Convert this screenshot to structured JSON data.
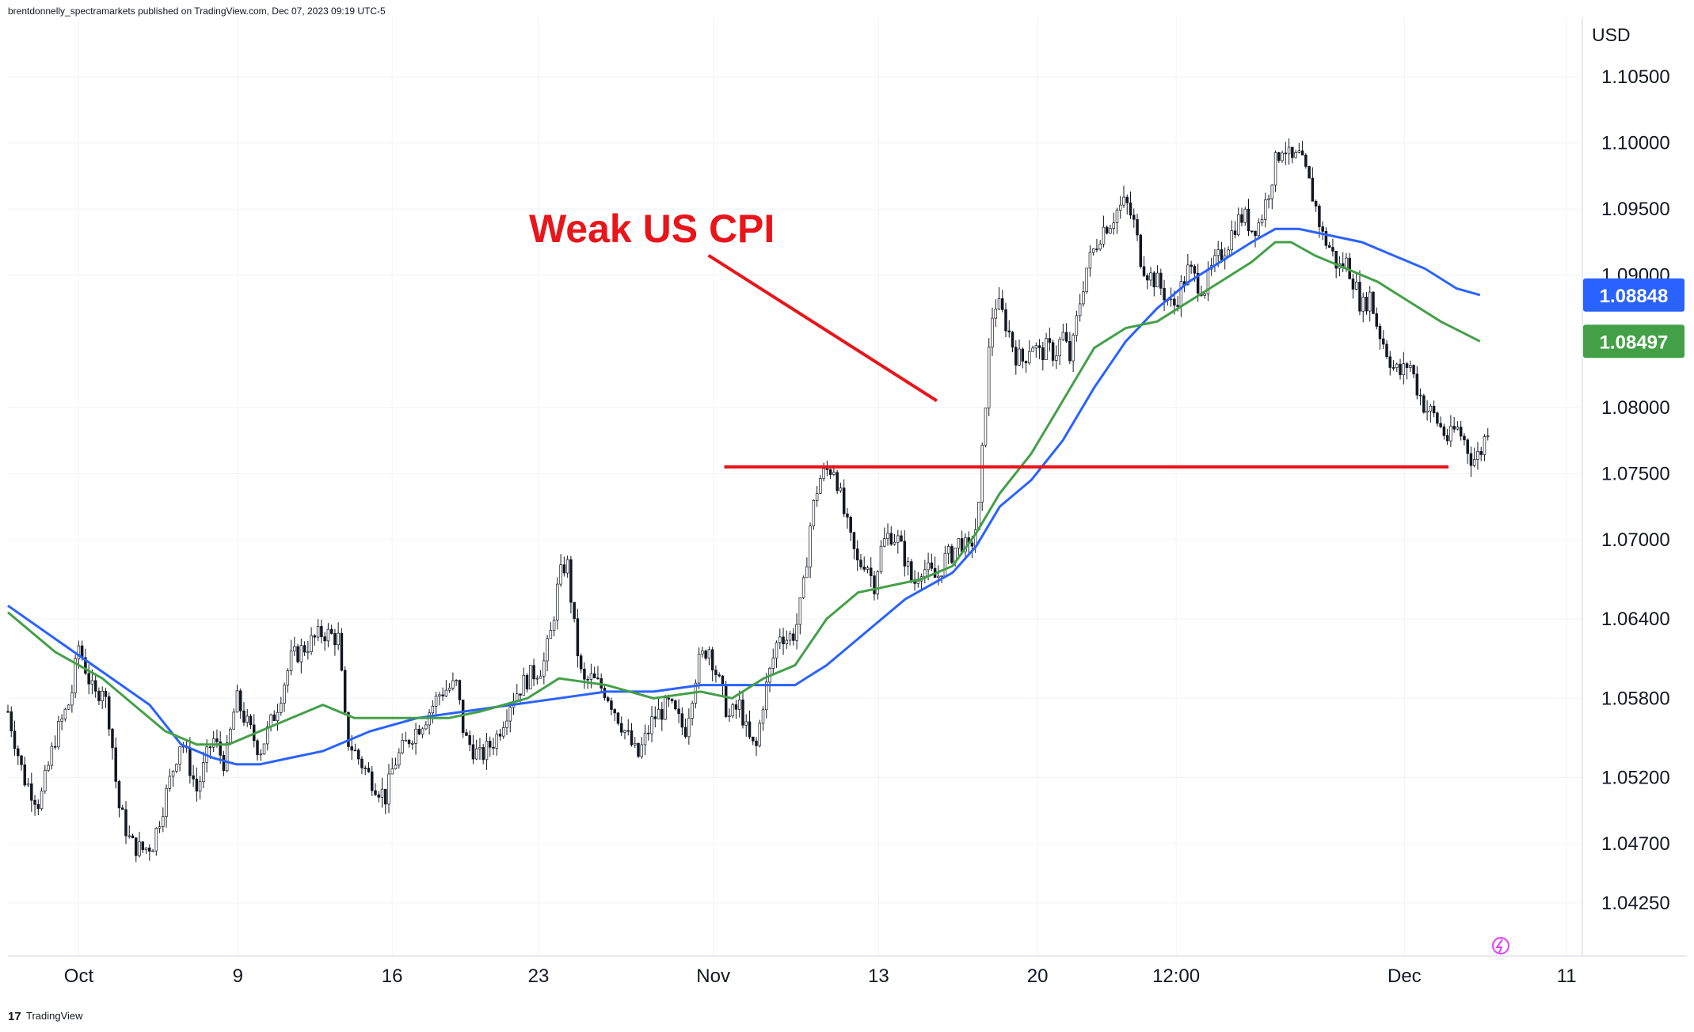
{
  "header": {
    "published_text": "brentdonnelly_spectramarkets published on TradingView.com, Dec 07, 2023 09:19 UTC-5"
  },
  "footer": {
    "logo_text": "TradingView"
  },
  "chart_data": {
    "type": "candlestick",
    "title": "",
    "currency_label": "USD",
    "y_axis": {
      "range": [
        1.0385,
        1.1095
      ],
      "tick_labels": [
        "1.10500",
        "1.10000",
        "1.09500",
        "1.09000",
        "1.08000",
        "1.07500",
        "1.07000",
        "1.06400",
        "1.05800",
        "1.05200",
        "1.04700",
        "1.04250"
      ],
      "tick_values": [
        1.105,
        1.1,
        1.095,
        1.09,
        1.08,
        1.075,
        1.07,
        1.064,
        1.058,
        1.052,
        1.047,
        1.0425
      ]
    },
    "x_axis": {
      "tick_labels": [
        "Oct",
        "9",
        "16",
        "23",
        "Nov",
        "13",
        "20",
        "12:00",
        "Dec",
        "11"
      ],
      "tick_positions": [
        0.045,
        0.146,
        0.244,
        0.337,
        0.448,
        0.553,
        0.654,
        0.742,
        0.887,
        0.99
      ]
    },
    "price_anchors": [
      [
        0.0,
        1.057
      ],
      [
        0.01,
        1.052
      ],
      [
        0.02,
        1.05
      ],
      [
        0.03,
        1.055
      ],
      [
        0.04,
        1.058
      ],
      [
        0.045,
        1.062
      ],
      [
        0.05,
        1.06
      ],
      [
        0.055,
        1.058
      ],
      [
        0.06,
        1.059
      ],
      [
        0.065,
        1.056
      ],
      [
        0.07,
        1.05
      ],
      [
        0.078,
        1.047
      ],
      [
        0.085,
        1.0465
      ],
      [
        0.092,
        1.047
      ],
      [
        0.1,
        1.0505
      ],
      [
        0.11,
        1.055
      ],
      [
        0.12,
        1.051
      ],
      [
        0.13,
        1.055
      ],
      [
        0.138,
        1.053
      ],
      [
        0.145,
        1.058
      ],
      [
        0.152,
        1.056
      ],
      [
        0.16,
        1.054
      ],
      [
        0.17,
        1.057
      ],
      [
        0.18,
        1.061
      ],
      [
        0.19,
        1.062
      ],
      [
        0.2,
        1.063
      ],
      [
        0.21,
        1.0625
      ],
      [
        0.215,
        1.055
      ],
      [
        0.22,
        1.054
      ],
      [
        0.23,
        1.052
      ],
      [
        0.24,
        1.0505
      ],
      [
        0.245,
        1.053
      ],
      [
        0.255,
        1.055
      ],
      [
        0.265,
        1.0565
      ],
      [
        0.275,
        1.0585
      ],
      [
        0.285,
        1.059
      ],
      [
        0.29,
        1.055
      ],
      [
        0.3,
        1.0535
      ],
      [
        0.31,
        1.055
      ],
      [
        0.32,
        1.058
      ],
      [
        0.33,
        1.0595
      ],
      [
        0.34,
        1.0605
      ],
      [
        0.345,
        1.063
      ],
      [
        0.35,
        1.067
      ],
      [
        0.355,
        1.0685
      ],
      [
        0.36,
        1.063
      ],
      [
        0.365,
        1.059
      ],
      [
        0.37,
        1.0595
      ],
      [
        0.38,
        1.0585
      ],
      [
        0.39,
        1.056
      ],
      [
        0.4,
        1.0535
      ],
      [
        0.41,
        1.0565
      ],
      [
        0.42,
        1.0575
      ],
      [
        0.43,
        1.0555
      ],
      [
        0.438,
        1.0605
      ],
      [
        0.445,
        1.062
      ],
      [
        0.452,
        1.059
      ],
      [
        0.458,
        1.0565
      ],
      [
        0.465,
        1.0575
      ],
      [
        0.47,
        1.055
      ],
      [
        0.475,
        1.054
      ],
      [
        0.48,
        1.058
      ],
      [
        0.485,
        1.0605
      ],
      [
        0.49,
        1.063
      ],
      [
        0.495,
        1.0625
      ],
      [
        0.5,
        1.063
      ],
      [
        0.505,
        1.066
      ],
      [
        0.51,
        1.0715
      ],
      [
        0.515,
        1.0745
      ],
      [
        0.52,
        1.0752
      ],
      [
        0.525,
        1.0755
      ],
      [
        0.53,
        1.0725
      ],
      [
        0.535,
        1.07
      ],
      [
        0.54,
        1.068
      ],
      [
        0.545,
        1.0685
      ],
      [
        0.55,
        1.0665
      ],
      [
        0.555,
        1.0695
      ],
      [
        0.56,
        1.0705
      ],
      [
        0.565,
        1.07
      ],
      [
        0.57,
        1.0685
      ],
      [
        0.575,
        1.0665
      ],
      [
        0.58,
        1.068
      ],
      [
        0.585,
        1.0675
      ],
      [
        0.59,
        1.067
      ],
      [
        0.595,
        1.0685
      ],
      [
        0.6,
        1.069
      ],
      [
        0.605,
        1.07
      ],
      [
        0.61,
        1.069
      ],
      [
        0.614,
        1.0705
      ],
      [
        0.617,
        1.0725
      ],
      [
        0.62,
        1.079
      ],
      [
        0.623,
        1.084
      ],
      [
        0.626,
        1.088
      ],
      [
        0.63,
        1.0875
      ],
      [
        0.635,
        1.086
      ],
      [
        0.64,
        1.084
      ],
      [
        0.645,
        1.0835
      ],
      [
        0.65,
        1.085
      ],
      [
        0.655,
        1.084
      ],
      [
        0.66,
        1.0845
      ],
      [
        0.665,
        1.084
      ],
      [
        0.67,
        1.0855
      ],
      [
        0.675,
        1.0835
      ],
      [
        0.68,
        1.0875
      ],
      [
        0.685,
        1.0905
      ],
      [
        0.69,
        1.092
      ],
      [
        0.695,
        1.0935
      ],
      [
        0.7,
        1.094
      ],
      [
        0.705,
        1.095
      ],
      [
        0.71,
        1.0955
      ],
      [
        0.715,
        1.094
      ],
      [
        0.72,
        1.091
      ],
      [
        0.725,
        1.09
      ],
      [
        0.73,
        1.0895
      ],
      [
        0.735,
        1.0885
      ],
      [
        0.74,
        1.0875
      ],
      [
        0.745,
        1.089
      ],
      [
        0.75,
        1.0905
      ],
      [
        0.755,
        1.0895
      ],
      [
        0.76,
        1.089
      ],
      [
        0.765,
        1.0905
      ],
      [
        0.77,
        1.0915
      ],
      [
        0.775,
        1.0925
      ],
      [
        0.78,
        1.094
      ],
      [
        0.785,
        1.0945
      ],
      [
        0.79,
        1.0935
      ],
      [
        0.795,
        1.094
      ],
      [
        0.8,
        1.096
      ],
      [
        0.805,
        1.0985
      ],
      [
        0.81,
        1.1
      ],
      [
        0.815,
        1.0985
      ],
      [
        0.82,
        1.099
      ],
      [
        0.825,
        1.0975
      ],
      [
        0.83,
        1.0955
      ],
      [
        0.835,
        1.093
      ],
      [
        0.84,
        1.092
      ],
      [
        0.845,
        1.0905
      ],
      [
        0.85,
        1.091
      ],
      [
        0.855,
        1.0895
      ],
      [
        0.86,
        1.0875
      ],
      [
        0.865,
        1.0885
      ],
      [
        0.87,
        1.086
      ],
      [
        0.875,
        1.0845
      ],
      [
        0.88,
        1.083
      ],
      [
        0.885,
        1.0825
      ],
      [
        0.89,
        1.0835
      ],
      [
        0.895,
        1.0815
      ],
      [
        0.9,
        1.08
      ],
      [
        0.905,
        1.0795
      ],
      [
        0.91,
        1.0785
      ],
      [
        0.915,
        1.0775
      ],
      [
        0.92,
        1.0785
      ],
      [
        0.925,
        1.0775
      ],
      [
        0.93,
        1.076
      ],
      [
        0.935,
        1.0765
      ],
      [
        0.94,
        1.0785
      ]
    ],
    "moving_averages": [
      {
        "name": "blue-ma",
        "color": "#2962ff",
        "last_value_label": "1.08848",
        "points": [
          [
            0.0,
            1.065
          ],
          [
            0.03,
            1.0625
          ],
          [
            0.06,
            1.06
          ],
          [
            0.09,
            1.0575
          ],
          [
            0.11,
            1.0545
          ],
          [
            0.13,
            1.0535
          ],
          [
            0.145,
            1.053
          ],
          [
            0.16,
            1.053
          ],
          [
            0.18,
            1.0535
          ],
          [
            0.2,
            1.054
          ],
          [
            0.23,
            1.0555
          ],
          [
            0.26,
            1.0565
          ],
          [
            0.29,
            1.057
          ],
          [
            0.32,
            1.0575
          ],
          [
            0.35,
            1.058
          ],
          [
            0.38,
            1.0585
          ],
          [
            0.41,
            1.0585
          ],
          [
            0.44,
            1.059
          ],
          [
            0.47,
            1.059
          ],
          [
            0.5,
            1.059
          ],
          [
            0.52,
            1.0605
          ],
          [
            0.55,
            1.0635
          ],
          [
            0.57,
            1.0655
          ],
          [
            0.6,
            1.0675
          ],
          [
            0.615,
            1.0695
          ],
          [
            0.63,
            1.0725
          ],
          [
            0.65,
            1.0745
          ],
          [
            0.67,
            1.0775
          ],
          [
            0.69,
            1.0815
          ],
          [
            0.71,
            1.085
          ],
          [
            0.73,
            1.0875
          ],
          [
            0.75,
            1.0895
          ],
          [
            0.77,
            1.091
          ],
          [
            0.79,
            1.0925
          ],
          [
            0.805,
            1.0935
          ],
          [
            0.82,
            1.0935
          ],
          [
            0.84,
            1.093
          ],
          [
            0.86,
            1.0925
          ],
          [
            0.88,
            1.0915
          ],
          [
            0.9,
            1.0905
          ],
          [
            0.92,
            1.089
          ],
          [
            0.935,
            1.0885
          ]
        ]
      },
      {
        "name": "green-ma",
        "color": "#43a047",
        "last_value_label": "1.08497",
        "points": [
          [
            0.0,
            1.0645
          ],
          [
            0.03,
            1.0615
          ],
          [
            0.06,
            1.0595
          ],
          [
            0.08,
            1.0575
          ],
          [
            0.1,
            1.0555
          ],
          [
            0.12,
            1.0545
          ],
          [
            0.14,
            1.0545
          ],
          [
            0.16,
            1.0555
          ],
          [
            0.18,
            1.0565
          ],
          [
            0.2,
            1.0575
          ],
          [
            0.22,
            1.0565
          ],
          [
            0.25,
            1.0565
          ],
          [
            0.28,
            1.0565
          ],
          [
            0.3,
            1.057
          ],
          [
            0.33,
            1.058
          ],
          [
            0.35,
            1.0595
          ],
          [
            0.38,
            1.059
          ],
          [
            0.41,
            1.058
          ],
          [
            0.44,
            1.0585
          ],
          [
            0.46,
            1.058
          ],
          [
            0.48,
            1.0595
          ],
          [
            0.5,
            1.0605
          ],
          [
            0.52,
            1.064
          ],
          [
            0.54,
            1.066
          ],
          [
            0.56,
            1.0665
          ],
          [
            0.58,
            1.067
          ],
          [
            0.6,
            1.068
          ],
          [
            0.615,
            1.0705
          ],
          [
            0.63,
            1.0735
          ],
          [
            0.65,
            1.0765
          ],
          [
            0.67,
            1.0805
          ],
          [
            0.69,
            1.0845
          ],
          [
            0.71,
            1.086
          ],
          [
            0.73,
            1.0865
          ],
          [
            0.75,
            1.088
          ],
          [
            0.77,
            1.0895
          ],
          [
            0.79,
            1.091
          ],
          [
            0.805,
            1.0925
          ],
          [
            0.815,
            1.0925
          ],
          [
            0.83,
            1.0915
          ],
          [
            0.85,
            1.0905
          ],
          [
            0.87,
            1.0895
          ],
          [
            0.89,
            1.088
          ],
          [
            0.91,
            1.0865
          ],
          [
            0.935,
            1.085
          ]
        ]
      }
    ],
    "annotations": {
      "label": "Weak US CPI",
      "support_level": 1.0755,
      "support_x_range": [
        0.455,
        0.915
      ],
      "arrow_from": [
        0.445,
        1.0915
      ],
      "arrow_to": [
        0.59,
        1.0805
      ]
    }
  }
}
